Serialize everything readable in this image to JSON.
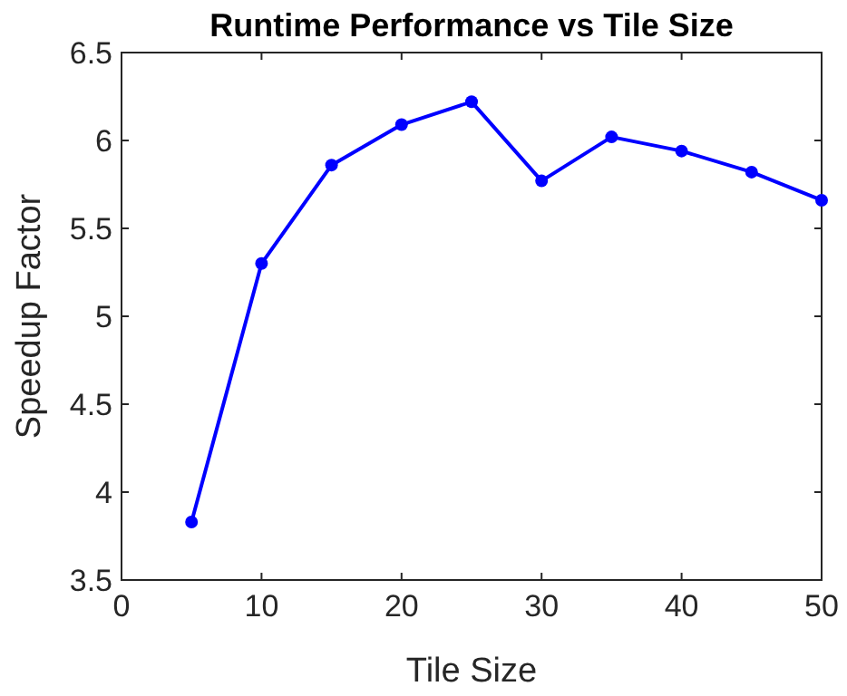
{
  "chart_data": {
    "type": "line",
    "title": "Runtime Performance vs Tile Size",
    "xlabel": "Tile Size",
    "ylabel": "Speedup Factor",
    "x": [
      5,
      10,
      15,
      20,
      25,
      30,
      35,
      40,
      45,
      50
    ],
    "series": [
      {
        "color": "#0000ff",
        "values": [
          3.83,
          5.3,
          5.86,
          6.09,
          6.22,
          5.77,
          6.02,
          5.94,
          5.82,
          5.66
        ]
      }
    ],
    "xlim": [
      0,
      50
    ],
    "xticks": [
      0,
      10,
      20,
      30,
      40,
      50
    ],
    "ylim": [
      3.5,
      6.5
    ],
    "yticks": [
      3.5,
      4,
      4.5,
      5,
      5.5,
      6,
      6.5
    ],
    "marker": "circle",
    "line_style": "solid"
  }
}
